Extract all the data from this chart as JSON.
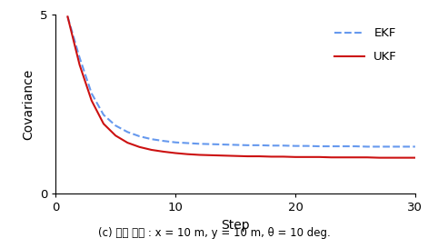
{
  "title": "",
  "xlabel": "Step",
  "ylabel": "Covariance",
  "xlim": [
    0,
    30
  ],
  "ylim": [
    0,
    5
  ],
  "xticks": [
    0,
    10,
    20,
    30
  ],
  "yticks": [
    0,
    5
  ],
  "ekf_color": "#6699ee",
  "ukf_color": "#cc1111",
  "ekf_label": "EKF",
  "ukf_label": "UKF",
  "caption": "(c) 초기 오차 : x = 10 m, y = 10 m, θ = 10 deg.",
  "steps": [
    1,
    2,
    3,
    4,
    5,
    6,
    7,
    8,
    9,
    10,
    11,
    12,
    13,
    14,
    15,
    16,
    17,
    18,
    19,
    20,
    21,
    22,
    23,
    24,
    25,
    26,
    27,
    28,
    29,
    30
  ],
  "ekf_values": [
    4.95,
    3.8,
    2.8,
    2.2,
    1.9,
    1.72,
    1.6,
    1.52,
    1.47,
    1.43,
    1.41,
    1.39,
    1.38,
    1.37,
    1.36,
    1.35,
    1.35,
    1.34,
    1.34,
    1.33,
    1.33,
    1.32,
    1.32,
    1.32,
    1.32,
    1.31,
    1.31,
    1.31,
    1.31,
    1.31
  ],
  "ukf_values": [
    4.95,
    3.6,
    2.6,
    1.95,
    1.62,
    1.42,
    1.3,
    1.22,
    1.17,
    1.13,
    1.1,
    1.08,
    1.07,
    1.06,
    1.05,
    1.04,
    1.04,
    1.03,
    1.03,
    1.02,
    1.02,
    1.02,
    1.01,
    1.01,
    1.01,
    1.01,
    1.0,
    1.0,
    1.0,
    1.0
  ]
}
